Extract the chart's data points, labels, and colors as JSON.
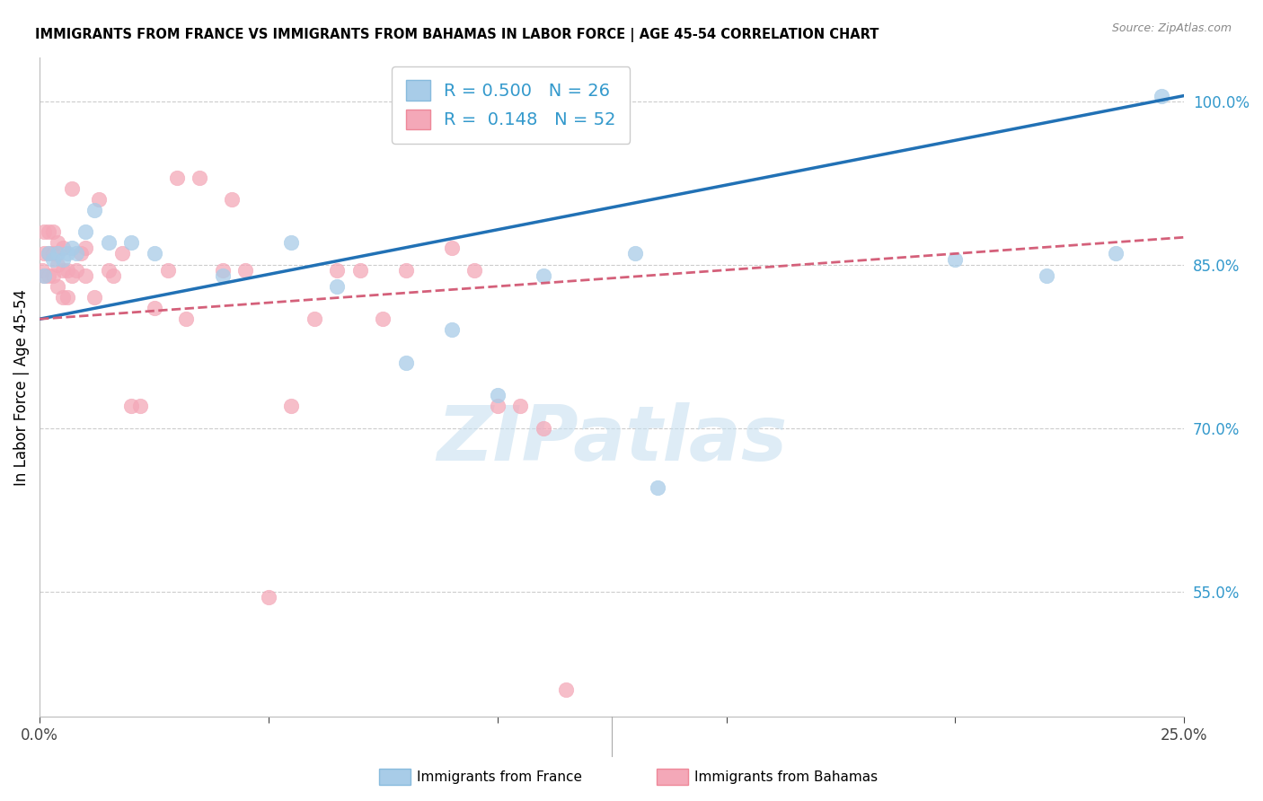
{
  "title": "IMMIGRANTS FROM FRANCE VS IMMIGRANTS FROM BAHAMAS IN LABOR FORCE | AGE 45-54 CORRELATION CHART",
  "source": "Source: ZipAtlas.com",
  "ylabel": "In Labor Force | Age 45-54",
  "france_color": "#a8cce8",
  "bahamas_color": "#f4a8b8",
  "france_line_color": "#2171b5",
  "bahamas_line_color": "#d4607a",
  "france_R": 0.5,
  "france_N": 26,
  "bahamas_R": 0.148,
  "bahamas_N": 52,
  "legend_label_france": "Immigrants from France",
  "legend_label_bahamas": "Immigrants from Bahamas",
  "watermark": "ZIPatlas",
  "xmin": 0.0,
  "xmax": 0.25,
  "ymin": 0.435,
  "ymax": 1.04,
  "yticks": [
    0.55,
    0.7,
    0.85,
    1.0
  ],
  "xticks": [
    0.0,
    0.05,
    0.1,
    0.15,
    0.2,
    0.25
  ],
  "france_x": [
    0.001,
    0.002,
    0.003,
    0.004,
    0.005,
    0.006,
    0.007,
    0.008,
    0.01,
    0.012,
    0.015,
    0.02,
    0.025,
    0.04,
    0.055,
    0.065,
    0.08,
    0.09,
    0.1,
    0.11,
    0.13,
    0.135,
    0.2,
    0.22,
    0.235,
    0.245
  ],
  "france_y": [
    0.84,
    0.86,
    0.855,
    0.86,
    0.855,
    0.86,
    0.865,
    0.86,
    0.88,
    0.9,
    0.87,
    0.87,
    0.86,
    0.84,
    0.87,
    0.83,
    0.76,
    0.79,
    0.73,
    0.84,
    0.86,
    0.645,
    0.855,
    0.84,
    0.86,
    1.005
  ],
  "bahamas_x": [
    0.0005,
    0.001,
    0.001,
    0.001,
    0.002,
    0.002,
    0.002,
    0.003,
    0.003,
    0.003,
    0.004,
    0.004,
    0.004,
    0.005,
    0.005,
    0.005,
    0.006,
    0.006,
    0.007,
    0.007,
    0.008,
    0.009,
    0.01,
    0.01,
    0.012,
    0.013,
    0.015,
    0.016,
    0.018,
    0.02,
    0.022,
    0.025,
    0.028,
    0.03,
    0.032,
    0.035,
    0.04,
    0.042,
    0.045,
    0.05,
    0.055,
    0.06,
    0.065,
    0.07,
    0.075,
    0.08,
    0.09,
    0.095,
    0.1,
    0.105,
    0.11,
    0.115
  ],
  "bahamas_y": [
    0.845,
    0.84,
    0.86,
    0.88,
    0.84,
    0.86,
    0.88,
    0.84,
    0.86,
    0.88,
    0.83,
    0.85,
    0.87,
    0.82,
    0.845,
    0.865,
    0.82,
    0.845,
    0.84,
    0.92,
    0.845,
    0.86,
    0.84,
    0.865,
    0.82,
    0.91,
    0.845,
    0.84,
    0.86,
    0.72,
    0.72,
    0.81,
    0.845,
    0.93,
    0.8,
    0.93,
    0.845,
    0.91,
    0.845,
    0.545,
    0.72,
    0.8,
    0.845,
    0.845,
    0.8,
    0.845,
    0.865,
    0.845,
    0.72,
    0.72,
    0.7,
    0.46
  ]
}
